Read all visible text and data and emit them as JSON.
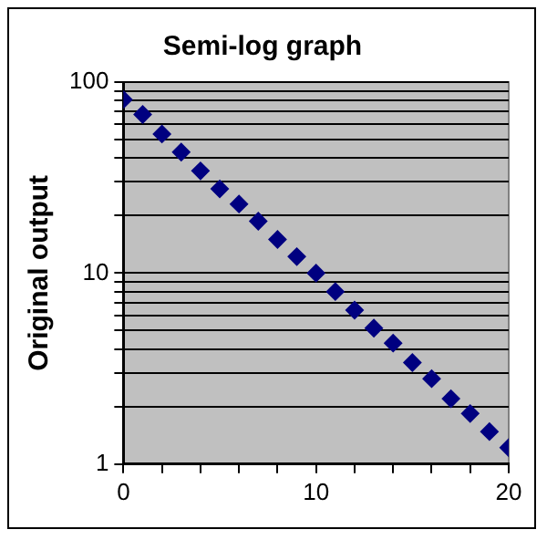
{
  "chart_data": {
    "type": "scatter",
    "title": "Semi-log graph",
    "ylabel": "Original output",
    "x": [
      0,
      1,
      2,
      3,
      4,
      5,
      6,
      7,
      8,
      9,
      10,
      11,
      12,
      13,
      14,
      15,
      16,
      17,
      18,
      19,
      20
    ],
    "series": [
      {
        "color": "#000080",
        "values": [
          81,
          67.7,
          53.5,
          43,
          34.3,
          27.6,
          23,
          18.7,
          15,
          12.2,
          10,
          8,
          6.4,
          5.15,
          4.3,
          3.4,
          2.8,
          2.2,
          1.84,
          1.48,
          1.22
        ]
      }
    ],
    "xlim": [
      0,
      20
    ],
    "xticks": [
      0,
      {
        "value": 2,
        "label": null
      },
      {
        "value": 4,
        "label": null
      },
      {
        "value": 6,
        "label": null
      },
      {
        "value": 8,
        "label": null
      },
      10,
      {
        "value": 12,
        "label": null
      },
      {
        "value": 14,
        "label": null
      },
      {
        "value": 16,
        "label": null
      },
      {
        "value": 18,
        "label": null
      },
      20
    ],
    "ylim": [
      1,
      100
    ],
    "yticks": [
      1,
      {
        "value": 2,
        "label": null
      },
      {
        "value": 3,
        "label": null
      },
      {
        "value": 4,
        "label": null
      },
      {
        "value": 5,
        "label": null
      },
      {
        "value": 6,
        "label": null
      },
      {
        "value": 7,
        "label": null
      },
      {
        "value": 8,
        "label": null
      },
      {
        "value": 9,
        "label": null
      },
      10,
      {
        "value": 20,
        "label": null
      },
      {
        "value": 30,
        "label": null
      },
      {
        "value": 40,
        "label": null
      },
      {
        "value": 50,
        "label": null
      },
      {
        "value": 60,
        "label": null
      },
      {
        "value": 70,
        "label": null
      },
      {
        "value": 80,
        "label": null
      },
      {
        "value": 90,
        "label": null
      },
      100
    ],
    "log": "y",
    "grid": "y",
    "marker": "diamond",
    "legend": false
  }
}
